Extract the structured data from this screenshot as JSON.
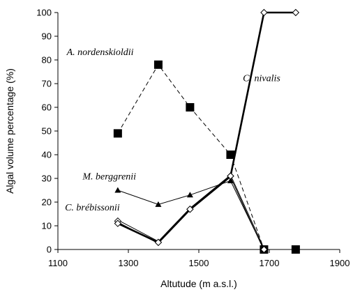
{
  "chart_data": {
    "type": "line",
    "xlabel": "Altutude (m a.s.l.)",
    "ylabel": "Algal volume percentage (%)",
    "xlim": [
      1100,
      1900
    ],
    "ylim": [
      0,
      100
    ],
    "xticks": [
      "1100",
      "1300",
      "1500",
      "1700",
      "1900"
    ],
    "yticks": [
      "0",
      "10",
      "20",
      "30",
      "40",
      "50",
      "60",
      "70",
      "80",
      "90",
      "100"
    ],
    "grid": false,
    "legend": "none",
    "series": [
      {
        "name": "A. nordenskioldii",
        "x": [
          1270,
          1385,
          1475,
          1590,
          1685,
          1775
        ],
        "y": [
          49,
          78,
          60,
          40,
          0,
          0
        ],
        "line": "dashed",
        "marker": "filled-square",
        "color": "#000000"
      },
      {
        "name": "M. berggrenii",
        "x": [
          1270,
          1385,
          1475,
          1590,
          1685
        ],
        "y": [
          25,
          19,
          23,
          29,
          0
        ],
        "line": "solid-thin",
        "marker": "filled-triangle",
        "color": "#000000"
      },
      {
        "name": "C. brébissonii",
        "x": [
          1270,
          1385,
          1475,
          1590,
          1685
        ],
        "y": [
          12,
          3,
          17,
          31,
          0
        ],
        "line": "double",
        "marker": "open-diamond",
        "color": "#000000"
      },
      {
        "name": "C. nivalis",
        "x": [
          1270,
          1385,
          1475,
          1590,
          1685,
          1775
        ],
        "y": [
          11,
          3,
          17,
          31,
          100,
          100
        ],
        "line": "solid-thick",
        "marker": "open-diamond",
        "color": "#000000"
      }
    ]
  }
}
